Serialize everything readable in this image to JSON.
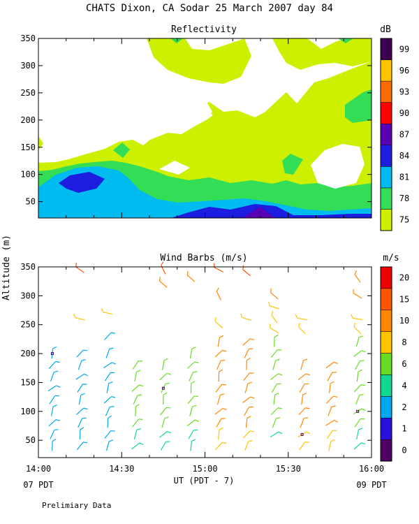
{
  "page": {
    "title": "CHATS Dixon, CA  Sodar  25 March 2007  day  84",
    "y_axis_label": "Altitude (m)",
    "x_axis_label": "UT  (PDT - 7)",
    "x_left_sub": "07 PDT",
    "x_right_sub": "09 PDT",
    "footer": "Prelimiary Data"
  },
  "chart_data": [
    {
      "type": "heatmap",
      "title": "Reflectivity",
      "colorbar_unit": "dB",
      "colorbar": [
        {
          "label": "75",
          "color": "#ccf000"
        },
        {
          "label": "78",
          "color": "#33dd55"
        },
        {
          "label": "81",
          "color": "#00bbf0"
        },
        {
          "label": "84",
          "color": "#1d1de0"
        },
        {
          "label": "87",
          "color": "#5a00b4"
        },
        {
          "label": "90",
          "color": "#ff0000"
        },
        {
          "label": "93",
          "color": "#ff6a00"
        },
        {
          "label": "96",
          "color": "#ffc400"
        },
        {
          "label": "99",
          "color": "#3d0050"
        }
      ],
      "xlim": [
        "14:00",
        "16:00"
      ],
      "ylim": [
        20,
        350
      ],
      "x_ticks": [
        "14:00",
        "14:30",
        "15:00",
        "15:30",
        "16:00"
      ],
      "y_ticks": [
        50,
        100,
        150,
        200,
        250,
        300,
        350
      ],
      "regions": [
        {
          "level": "75",
          "min_db": 75,
          "altitude_range_m": [
            35,
            350
          ]
        },
        {
          "level": "78",
          "min_db": 78,
          "altitude_range_m": [
            40,
            135
          ]
        },
        {
          "level": "81",
          "min_db": 81,
          "altitude_range_m": [
            40,
            120
          ]
        },
        {
          "level": "84",
          "min_db": 84,
          "altitude_range_m": [
            40,
            105
          ]
        },
        {
          "level": "87",
          "min_db": 87,
          "altitude_range_m": [
            40,
            60
          ]
        }
      ]
    },
    {
      "type": "scatter",
      "title": "Wind Barbs (m/s)",
      "colorbar_unit": "m/s",
      "colorbar": [
        {
          "label": "0",
          "color": "#500060"
        },
        {
          "label": "1",
          "color": "#2a10dd"
        },
        {
          "label": "2",
          "color": "#00a8f0"
        },
        {
          "label": "4",
          "color": "#10d890"
        },
        {
          "label": "6",
          "color": "#66dd22"
        },
        {
          "label": "8",
          "color": "#ffc400"
        },
        {
          "label": "10",
          "color": "#ff8800"
        },
        {
          "label": "15",
          "color": "#ff5500"
        },
        {
          "label": "20",
          "color": "#ee0000"
        }
      ],
      "xlim": [
        "14:00",
        "16:00"
      ],
      "ylim": [
        20,
        350
      ],
      "x_ticks": [
        "14:00",
        "14:30",
        "15:00",
        "15:30",
        "16:00"
      ],
      "y_ticks": [
        50,
        100,
        150,
        200,
        250,
        300,
        350
      ],
      "columns": [
        "14:05",
        "14:15",
        "14:25",
        "14:35",
        "14:45",
        "14:55",
        "15:05",
        "15:15",
        "15:25",
        "15:35",
        "15:45",
        "15:55"
      ],
      "barb_rows": [
        {
          "time": "14:05",
          "altitudes": [
            40,
            60,
            80,
            100,
            120,
            140,
            160,
            180,
            200
          ],
          "speed_level": 2
        },
        {
          "time": "14:15",
          "altitudes": [
            40,
            60,
            80,
            100,
            120,
            140,
            160,
            180,
            200,
            260,
            345
          ],
          "speed_level": 2
        },
        {
          "time": "14:25",
          "altitudes": [
            40,
            60,
            80,
            100,
            120,
            140,
            160,
            180,
            200,
            230,
            270
          ],
          "speed_level": 2
        },
        {
          "time": "14:35",
          "altitudes": [
            40,
            60,
            80,
            100,
            120,
            140,
            160,
            180
          ],
          "speed_level": 4
        },
        {
          "time": "14:45",
          "altitudes": [
            40,
            60,
            80,
            100,
            120,
            140,
            160,
            180,
            320,
            345
          ],
          "speed_level": 4
        },
        {
          "time": "14:55",
          "altitudes": [
            40,
            60,
            80,
            100,
            120,
            140,
            160,
            180,
            200,
            330
          ],
          "speed_level": 4
        },
        {
          "time": "15:05",
          "altitudes": [
            40,
            60,
            80,
            100,
            120,
            140,
            160,
            180,
            200,
            220,
            250,
            300,
            345
          ],
          "speed_level": 6
        },
        {
          "time": "15:15",
          "altitudes": [
            40,
            60,
            80,
            100,
            120,
            140,
            160,
            180,
            200,
            220,
            260,
            340
          ],
          "speed_level": 6
        },
        {
          "time": "15:25",
          "altitudes": [
            60,
            80,
            100,
            120,
            140,
            160,
            180,
            200,
            220,
            240,
            260,
            280,
            300
          ],
          "speed_level": 4
        },
        {
          "time": "15:35",
          "altitudes": [
            40,
            60,
            80,
            100,
            120,
            140,
            160,
            180,
            240,
            260
          ],
          "speed_level": 6
        },
        {
          "time": "15:45",
          "altitudes": [
            40,
            60,
            80,
            100,
            120,
            140,
            160,
            180
          ],
          "speed_level": 6
        },
        {
          "time": "15:55",
          "altitudes": [
            40,
            60,
            80,
            100,
            120,
            140,
            160,
            180,
            200,
            220,
            240,
            260,
            300,
            330
          ],
          "speed_level": 4
        }
      ]
    }
  ]
}
